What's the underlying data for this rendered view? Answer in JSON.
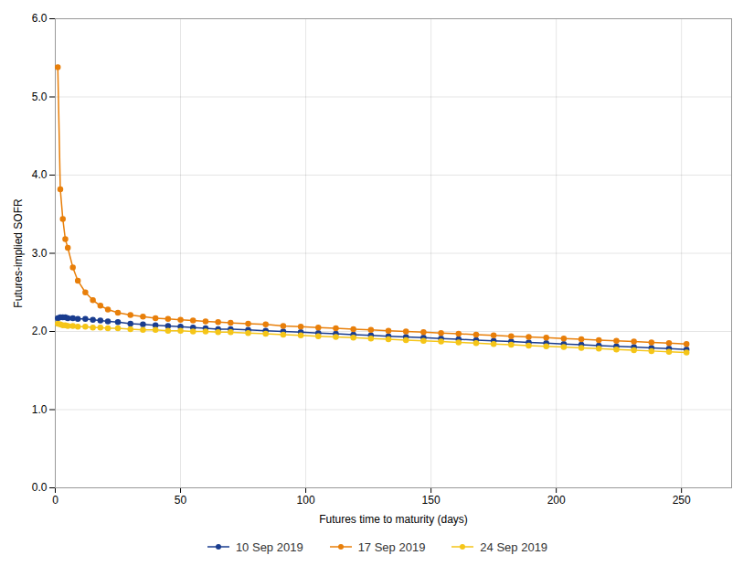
{
  "chart_data": {
    "type": "line",
    "xlabel": "Futures time to maturity (days)",
    "ylabel": "Futures-implied SOFR",
    "x": [
      1,
      2,
      3,
      4,
      5,
      7,
      9,
      12,
      15,
      18,
      21,
      25,
      30,
      35,
      40,
      45,
      50,
      55,
      60,
      65,
      70,
      77,
      84,
      91,
      98,
      105,
      112,
      119,
      126,
      133,
      140,
      147,
      154,
      161,
      168,
      175,
      182,
      189,
      196,
      203,
      210,
      217,
      224,
      231,
      238,
      245,
      252
    ],
    "series": [
      {
        "name": "10 Sep 2019",
        "color": "#1a3d8f",
        "marker": "circle",
        "values": [
          2.17,
          2.18,
          2.18,
          2.18,
          2.17,
          2.17,
          2.16,
          2.16,
          2.15,
          2.14,
          2.13,
          2.12,
          2.1,
          2.09,
          2.08,
          2.07,
          2.06,
          2.05,
          2.04,
          2.03,
          2.03,
          2.02,
          2.01,
          2.0,
          1.99,
          1.98,
          1.97,
          1.96,
          1.95,
          1.94,
          1.93,
          1.92,
          1.91,
          1.9,
          1.89,
          1.88,
          1.87,
          1.86,
          1.85,
          1.84,
          1.83,
          1.82,
          1.81,
          1.8,
          1.79,
          1.78,
          1.77
        ]
      },
      {
        "name": "17 Sep 2019",
        "color": "#e87f0a",
        "marker": "circle",
        "values": [
          5.38,
          3.82,
          3.44,
          3.18,
          3.07,
          2.82,
          2.65,
          2.5,
          2.4,
          2.33,
          2.28,
          2.24,
          2.21,
          2.19,
          2.17,
          2.16,
          2.15,
          2.14,
          2.13,
          2.12,
          2.11,
          2.1,
          2.09,
          2.07,
          2.06,
          2.05,
          2.04,
          2.03,
          2.02,
          2.01,
          2.0,
          1.99,
          1.98,
          1.97,
          1.96,
          1.95,
          1.94,
          1.93,
          1.92,
          1.91,
          1.9,
          1.89,
          1.88,
          1.87,
          1.86,
          1.85,
          1.84
        ]
      },
      {
        "name": "24 Sep 2019",
        "color": "#f5c518",
        "marker": "circle",
        "values": [
          2.1,
          2.09,
          2.08,
          2.08,
          2.07,
          2.07,
          2.06,
          2.06,
          2.05,
          2.05,
          2.04,
          2.04,
          2.03,
          2.02,
          2.02,
          2.01,
          2.01,
          2.0,
          2.0,
          1.99,
          1.99,
          1.98,
          1.97,
          1.96,
          1.95,
          1.94,
          1.93,
          1.92,
          1.91,
          1.9,
          1.89,
          1.88,
          1.87,
          1.86,
          1.85,
          1.84,
          1.83,
          1.82,
          1.81,
          1.8,
          1.79,
          1.78,
          1.77,
          1.76,
          1.75,
          1.74,
          1.73
        ]
      }
    ],
    "xlim": [
      0,
      270
    ],
    "xticks": [
      0,
      50,
      100,
      150,
      200,
      250
    ],
    "ylim": [
      0,
      6
    ],
    "yticks": [
      0,
      1,
      2,
      3,
      4,
      5,
      6
    ],
    "grid": true,
    "legend": "bottom"
  }
}
